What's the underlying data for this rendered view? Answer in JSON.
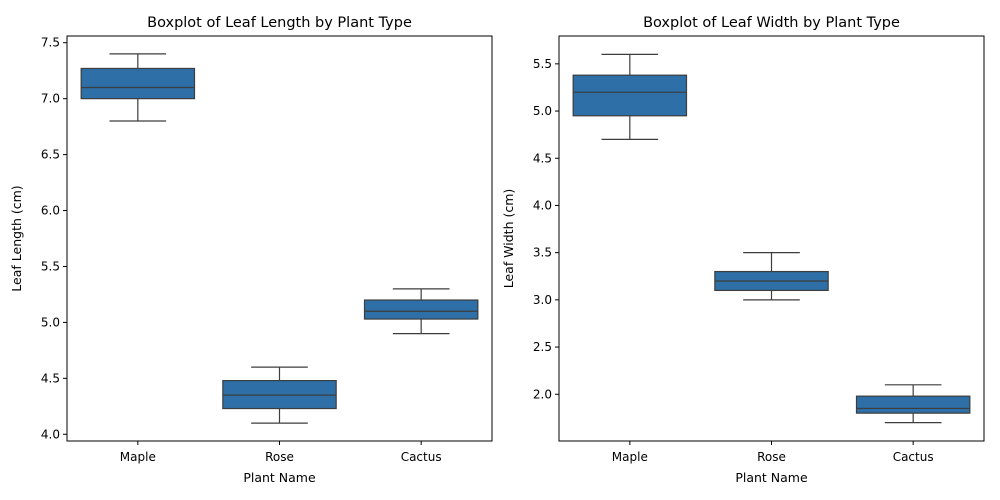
{
  "chart_data": [
    {
      "type": "boxplot",
      "title": "Boxplot of Leaf Length by Plant Type",
      "xlabel": "Plant Name",
      "ylabel": "Leaf Length (cm)",
      "categories": [
        "Maple",
        "Rose",
        "Cactus"
      ],
      "ylim": [
        3.94,
        7.56
      ],
      "yticks": [
        "4.0",
        "4.5",
        "5.0",
        "5.5",
        "6.0",
        "6.5",
        "7.0",
        "7.5"
      ],
      "boxes": [
        {
          "category": "Maple",
          "whisker_low": 6.8,
          "q1": 7.0,
          "median": 7.1,
          "q3": 7.27,
          "whisker_high": 7.4
        },
        {
          "category": "Rose",
          "whisker_low": 4.1,
          "q1": 4.23,
          "median": 4.35,
          "q3": 4.48,
          "whisker_high": 4.6
        },
        {
          "category": "Cactus",
          "whisker_low": 4.9,
          "q1": 5.03,
          "median": 5.1,
          "q3": 5.2,
          "whisker_high": 5.3
        }
      ],
      "box_color": "#2d6fa6",
      "line_color": "#3d3d3d",
      "grid": false
    },
    {
      "type": "boxplot",
      "title": "Boxplot of Leaf Width by Plant Type",
      "xlabel": "Plant Name",
      "ylabel": "Leaf Width (cm)",
      "categories": [
        "Maple",
        "Rose",
        "Cactus"
      ],
      "ylim": [
        1.505,
        5.795
      ],
      "yticks": [
        "2.0",
        "2.5",
        "3.0",
        "3.5",
        "4.0",
        "4.5",
        "5.0",
        "5.5"
      ],
      "boxes": [
        {
          "category": "Maple",
          "whisker_low": 4.7,
          "q1": 4.95,
          "median": 5.2,
          "q3": 5.38,
          "whisker_high": 5.6
        },
        {
          "category": "Rose",
          "whisker_low": 3.0,
          "q1": 3.1,
          "median": 3.2,
          "q3": 3.3,
          "whisker_high": 3.5
        },
        {
          "category": "Cactus",
          "whisker_low": 1.7,
          "q1": 1.8,
          "median": 1.85,
          "q3": 1.98,
          "whisker_high": 2.1
        }
      ],
      "box_color": "#2d6fa6",
      "line_color": "#3d3d3d",
      "grid": false
    }
  ]
}
